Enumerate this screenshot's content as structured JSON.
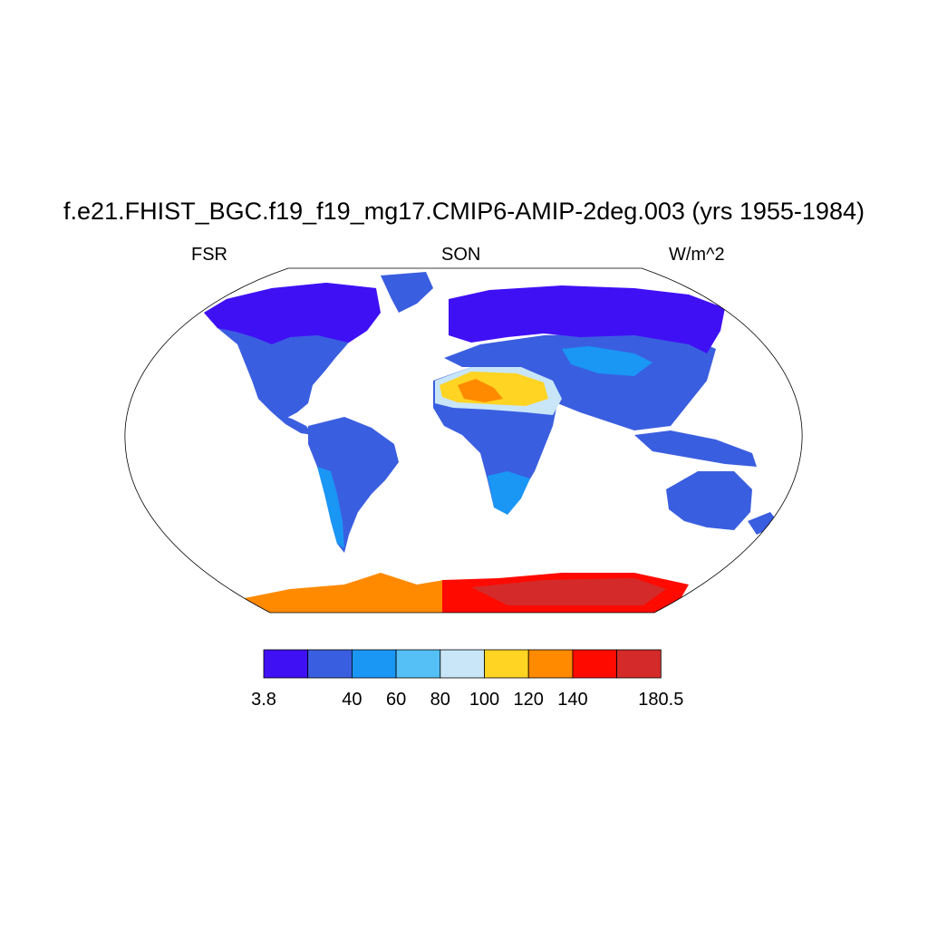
{
  "title": "f.e21.FHIST_BGC.f19_f19_mg17.CMIP6-AMIP-2deg.003 (yrs 1955-1984)",
  "left_label": "FSR",
  "center_label": "SON",
  "right_label": "W/m^2",
  "colorbar": {
    "labels": [
      "3.8",
      "40",
      "60",
      "80",
      "100",
      "120",
      "140",
      "180.5"
    ],
    "bins": [
      {
        "from": 3.8,
        "to": 20,
        "color": "#4010f5"
      },
      {
        "from": 20,
        "to": 40,
        "color": "#3a5ee0"
      },
      {
        "from": 40,
        "to": 60,
        "color": "#1a96f5"
      },
      {
        "from": 60,
        "to": 80,
        "color": "#55c0f5"
      },
      {
        "from": 80,
        "to": 100,
        "color": "#c8e6f8"
      },
      {
        "from": 100,
        "to": 120,
        "color": "#ffd422"
      },
      {
        "from": 120,
        "to": 140,
        "color": "#ff8a00"
      },
      {
        "from": 140,
        "to": 160,
        "color": "#ff0a00"
      },
      {
        "from": 160,
        "to": 180.5,
        "color": "#d42a2a"
      }
    ]
  }
}
